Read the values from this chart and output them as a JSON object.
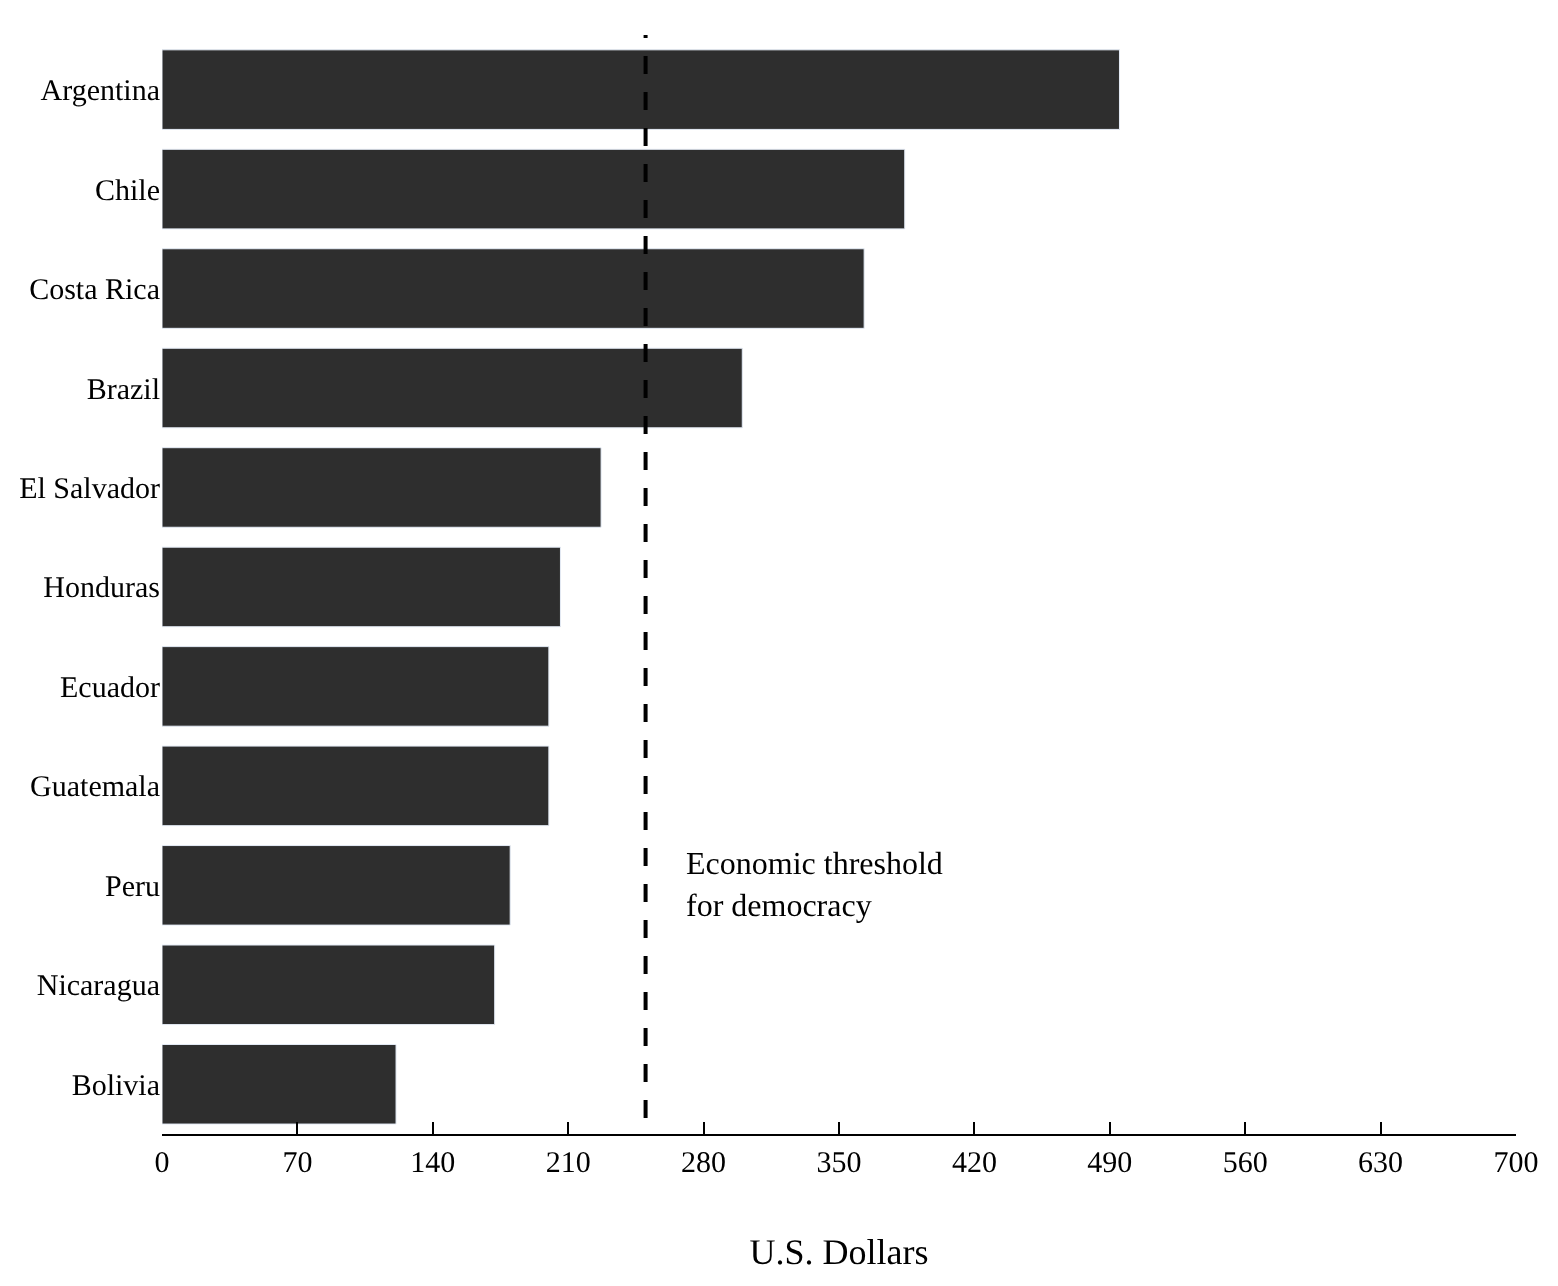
{
  "chart_data": {
    "type": "bar",
    "orientation": "horizontal",
    "xlabel": "U.S. Dollars",
    "categories": [
      "Argentina",
      "Chile",
      "Costa Rica",
      "Brazil",
      "El Salvador",
      "Honduras",
      "Ecuador",
      "Guatemala",
      "Peru",
      "Nicaragua",
      "Bolivia"
    ],
    "values": [
      495,
      384,
      363,
      300,
      227,
      206,
      200,
      200,
      180,
      172,
      121
    ],
    "color": "#2e2e2e",
    "xlim": [
      0,
      700
    ],
    "xticks": [
      0,
      70,
      140,
      210,
      280,
      350,
      420,
      490,
      560,
      630,
      700
    ],
    "ref_lines": [
      {
        "axis": "x",
        "value": 250,
        "label": "Economic threshold\nfor democracy",
        "line_style": "dashed",
        "color": "#000000"
      }
    ]
  }
}
